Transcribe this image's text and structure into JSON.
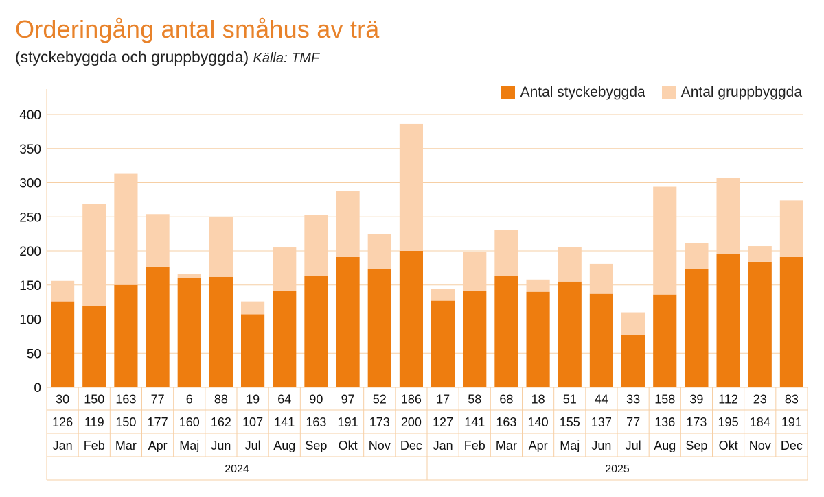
{
  "title": "Orderingång antal småhus av trä",
  "subtitle": "(styckebyggda och gruppbyggda)",
  "source": "Källa: TMF",
  "colors": {
    "stycke": "#EE7D0F",
    "grupp": "#FBD2AE",
    "grid": "#F6CFA5",
    "title": "#E8822A"
  },
  "chart_data": {
    "type": "bar",
    "stacked": true,
    "title": "Orderingång antal småhus av trä",
    "ylim": [
      0,
      400
    ],
    "yticks": [
      0,
      50,
      100,
      150,
      200,
      250,
      300,
      350,
      400
    ],
    "legend_position": "top-right",
    "categories": [
      "Jan",
      "Feb",
      "Mar",
      "Apr",
      "Maj",
      "Jun",
      "Jul",
      "Aug",
      "Sep",
      "Okt",
      "Nov",
      "Dec",
      "Jan",
      "Feb",
      "Mar",
      "Apr",
      "Maj",
      "Jun",
      "Jul",
      "Aug",
      "Sep",
      "Okt",
      "Nov",
      "Dec"
    ],
    "years": [
      {
        "label": "2024",
        "months": 12
      },
      {
        "label": "2025",
        "months": 12
      }
    ],
    "series": [
      {
        "name": "Antal styckebyggda",
        "values": [
          126,
          119,
          150,
          177,
          160,
          162,
          107,
          141,
          163,
          191,
          173,
          200,
          127,
          141,
          163,
          140,
          155,
          137,
          77,
          136,
          173,
          195,
          184,
          191
        ]
      },
      {
        "name": "Antal gruppbyggda",
        "values": [
          30,
          150,
          163,
          77,
          6,
          88,
          19,
          64,
          90,
          97,
          52,
          186,
          17,
          58,
          68,
          18,
          51,
          44,
          33,
          158,
          39,
          112,
          23,
          83
        ]
      }
    ]
  }
}
